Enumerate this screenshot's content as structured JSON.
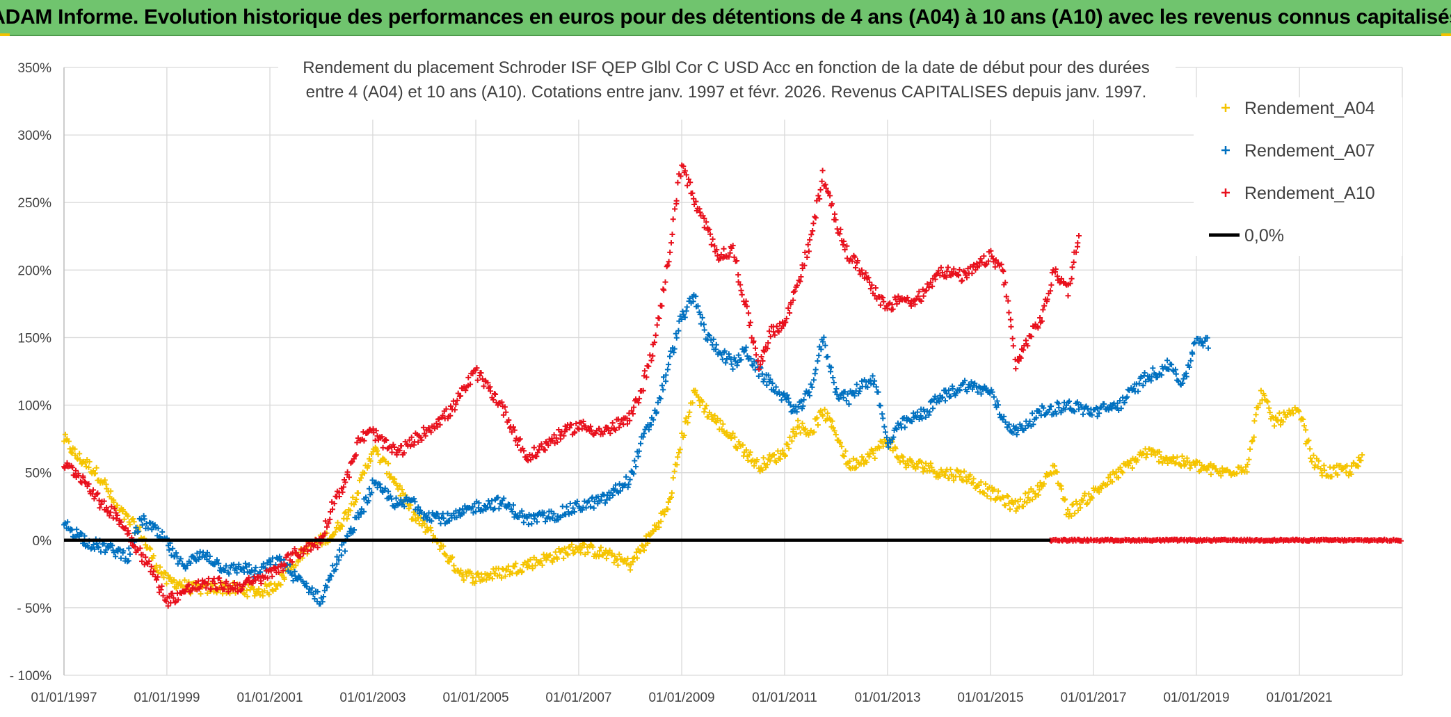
{
  "banner": {
    "title": "ADAM Informe. Evolution historique des performances en euros pour des détentions de 4 ans (A04) à 10 ans (A10) avec les revenus connus capitalisés"
  },
  "colors": {
    "banner_bg": "#70c46e",
    "A04": "#f5c400",
    "A07": "#0070c0",
    "A10": "#e8101c",
    "zero_line": "#000000",
    "grid": "#d9d9d9"
  },
  "chart_data": {
    "type": "scatter",
    "subtitle_lines": [
      "Rendement du placement Schroder ISF QEP Glbl Cor C USD Acc en fonction de la date de début pour des durées",
      "entre 4 (A04) et 10 ans (A10). Cotations entre janv. 1997 et févr. 2026. Revenus CAPITALISES depuis janv. 1997."
    ],
    "x_axis": {
      "range": [
        "1997-01-01",
        "2023-01-01"
      ],
      "tick_labels": [
        "01/01/1997",
        "01/01/1999",
        "01/01/2001",
        "01/01/2003",
        "01/01/2005",
        "01/01/2007",
        "01/01/2009",
        "01/01/2011",
        "01/01/2013",
        "01/01/2015",
        "01/01/2017",
        "01/01/2019",
        "01/01/2021"
      ]
    },
    "y_axis": {
      "range": [
        -100,
        350
      ],
      "unit": "%",
      "tick_labels": [
        "- 100%",
        "- 50%",
        "0%",
        "50%",
        "100%",
        "150%",
        "200%",
        "250%",
        "300%",
        "350%"
      ]
    },
    "grid": true,
    "legend_position": "top-right",
    "legend": [
      "Rendement_A04",
      "Rendement_A07",
      "Rendement_A10",
      "0,0%"
    ],
    "series": [
      {
        "name": "Rendement_A04",
        "color_key": "A04",
        "marker": "+",
        "points": [
          [
            "1997-01-01",
            75
          ],
          [
            "1997-04-01",
            62
          ],
          [
            "1997-07-01",
            55
          ],
          [
            "1997-10-01",
            45
          ],
          [
            "1998-01-01",
            25
          ],
          [
            "1998-04-01",
            15
          ],
          [
            "1998-07-01",
            5
          ],
          [
            "1998-10-01",
            -15
          ],
          [
            "1999-01-01",
            -30
          ],
          [
            "1999-04-01",
            -32
          ],
          [
            "1999-07-01",
            -36
          ],
          [
            "1999-10-01",
            -36
          ],
          [
            "2000-01-01",
            -35
          ],
          [
            "2000-04-01",
            -36
          ],
          [
            "2000-07-01",
            -37
          ],
          [
            "2000-10-01",
            -38
          ],
          [
            "2001-01-01",
            -36
          ],
          [
            "2001-04-01",
            -28
          ],
          [
            "2001-07-01",
            -15
          ],
          [
            "2001-10-01",
            -5
          ],
          [
            "2002-01-01",
            0
          ],
          [
            "2002-04-01",
            5
          ],
          [
            "2002-07-01",
            20
          ],
          [
            "2002-10-01",
            40
          ],
          [
            "2003-01-01",
            68
          ],
          [
            "2003-04-01",
            55
          ],
          [
            "2003-07-01",
            40
          ],
          [
            "2003-10-01",
            20
          ],
          [
            "2004-01-01",
            10
          ],
          [
            "2004-04-01",
            0
          ],
          [
            "2004-07-01",
            -15
          ],
          [
            "2004-10-01",
            -25
          ],
          [
            "2005-01-01",
            -28
          ],
          [
            "2005-07-01",
            -24
          ],
          [
            "2006-01-01",
            -18
          ],
          [
            "2006-07-01",
            -12
          ],
          [
            "2007-01-01",
            -5
          ],
          [
            "2007-07-01",
            -10
          ],
          [
            "2008-01-01",
            -18
          ],
          [
            "2008-04-01",
            -5
          ],
          [
            "2008-07-01",
            10
          ],
          [
            "2008-10-01",
            25
          ],
          [
            "2009-01-01",
            75
          ],
          [
            "2009-04-01",
            110
          ],
          [
            "2009-07-01",
            95
          ],
          [
            "2009-10-01",
            85
          ],
          [
            "2010-01-01",
            75
          ],
          [
            "2010-04-01",
            65
          ],
          [
            "2010-07-01",
            55
          ],
          [
            "2010-10-01",
            60
          ],
          [
            "2011-01-01",
            65
          ],
          [
            "2011-04-01",
            85
          ],
          [
            "2011-07-01",
            80
          ],
          [
            "2011-10-01",
            95
          ],
          [
            "2012-01-01",
            80
          ],
          [
            "2012-04-01",
            55
          ],
          [
            "2012-07-01",
            60
          ],
          [
            "2012-10-01",
            65
          ],
          [
            "2013-01-01",
            75
          ],
          [
            "2013-04-01",
            60
          ],
          [
            "2013-07-01",
            55
          ],
          [
            "2013-10-01",
            55
          ],
          [
            "2014-01-01",
            50
          ],
          [
            "2014-07-01",
            48
          ],
          [
            "2015-01-01",
            35
          ],
          [
            "2015-07-01",
            25
          ],
          [
            "2016-01-01",
            40
          ],
          [
            "2016-04-01",
            55
          ],
          [
            "2016-07-01",
            20
          ],
          [
            "2017-01-01",
            35
          ],
          [
            "2017-07-01",
            50
          ],
          [
            "2018-01-01",
            65
          ],
          [
            "2018-07-01",
            60
          ],
          [
            "2019-01-01",
            55
          ],
          [
            "2019-07-01",
            50
          ],
          [
            "2020-01-01",
            55
          ],
          [
            "2020-04-01",
            110
          ],
          [
            "2020-07-01",
            88
          ],
          [
            "2021-01-01",
            95
          ],
          [
            "2021-04-01",
            60
          ],
          [
            "2021-07-01",
            50
          ],
          [
            "2022-01-01",
            52
          ],
          [
            "2022-04-01",
            60
          ]
        ]
      },
      {
        "name": "Rendement_A07",
        "color_key": "A07",
        "marker": "+",
        "points": [
          [
            "1997-01-01",
            12
          ],
          [
            "1997-04-01",
            5
          ],
          [
            "1997-07-01",
            -2
          ],
          [
            "1997-10-01",
            -5
          ],
          [
            "1998-01-01",
            -8
          ],
          [
            "1998-04-01",
            -12
          ],
          [
            "1998-07-01",
            15
          ],
          [
            "1998-10-01",
            8
          ],
          [
            "1999-01-01",
            -2
          ],
          [
            "1999-04-01",
            -18
          ],
          [
            "1999-07-01",
            -15
          ],
          [
            "1999-10-01",
            -10
          ],
          [
            "2000-01-01",
            -18
          ],
          [
            "2000-04-01",
            -22
          ],
          [
            "2000-07-01",
            -20
          ],
          [
            "2000-10-01",
            -25
          ],
          [
            "2001-01-01",
            -18
          ],
          [
            "2001-04-01",
            -15
          ],
          [
            "2001-07-01",
            -28
          ],
          [
            "2001-10-01",
            -35
          ],
          [
            "2002-01-01",
            -45
          ],
          [
            "2002-04-01",
            -20
          ],
          [
            "2002-07-01",
            0
          ],
          [
            "2002-10-01",
            20
          ],
          [
            "2003-01-01",
            40
          ],
          [
            "2003-04-01",
            35
          ],
          [
            "2003-07-01",
            25
          ],
          [
            "2003-10-01",
            30
          ],
          [
            "2004-01-01",
            20
          ],
          [
            "2004-07-01",
            15
          ],
          [
            "2005-01-01",
            25
          ],
          [
            "2005-07-01",
            28
          ],
          [
            "2006-01-01",
            15
          ],
          [
            "2006-07-01",
            18
          ],
          [
            "2007-01-01",
            25
          ],
          [
            "2007-07-01",
            30
          ],
          [
            "2008-01-01",
            45
          ],
          [
            "2008-04-01",
            75
          ],
          [
            "2008-07-01",
            95
          ],
          [
            "2008-10-01",
            130
          ],
          [
            "2009-01-01",
            165
          ],
          [
            "2009-04-01",
            180
          ],
          [
            "2009-07-01",
            150
          ],
          [
            "2009-10-01",
            140
          ],
          [
            "2010-01-01",
            130
          ],
          [
            "2010-04-01",
            140
          ],
          [
            "2010-07-01",
            125
          ],
          [
            "2010-10-01",
            115
          ],
          [
            "2011-01-01",
            105
          ],
          [
            "2011-04-01",
            95
          ],
          [
            "2011-07-01",
            110
          ],
          [
            "2011-10-01",
            150
          ],
          [
            "2012-01-01",
            110
          ],
          [
            "2012-04-01",
            105
          ],
          [
            "2012-07-01",
            115
          ],
          [
            "2012-10-01",
            120
          ],
          [
            "2013-01-01",
            70
          ],
          [
            "2013-04-01",
            85
          ],
          [
            "2013-07-01",
            90
          ],
          [
            "2013-10-01",
            95
          ],
          [
            "2014-01-01",
            105
          ],
          [
            "2014-07-01",
            115
          ],
          [
            "2015-01-01",
            110
          ],
          [
            "2015-04-01",
            90
          ],
          [
            "2015-07-01",
            80
          ],
          [
            "2016-01-01",
            95
          ],
          [
            "2016-07-01",
            100
          ],
          [
            "2017-01-01",
            95
          ],
          [
            "2017-07-01",
            100
          ],
          [
            "2018-01-01",
            120
          ],
          [
            "2018-07-01",
            130
          ],
          [
            "2018-10-01",
            115
          ],
          [
            "2019-01-01",
            150
          ],
          [
            "2019-04-01",
            145
          ]
        ]
      },
      {
        "name": "Rendement_A10",
        "color_key": "A10",
        "marker": "+",
        "points": [
          [
            "1997-01-01",
            55
          ],
          [
            "1997-04-01",
            50
          ],
          [
            "1997-07-01",
            40
          ],
          [
            "1997-10-01",
            25
          ],
          [
            "1998-01-01",
            20
          ],
          [
            "1998-04-01",
            5
          ],
          [
            "1998-07-01",
            -10
          ],
          [
            "1998-10-01",
            -25
          ],
          [
            "1999-01-01",
            -45
          ],
          [
            "1999-04-01",
            -40
          ],
          [
            "1999-07-01",
            -35
          ],
          [
            "1999-10-01",
            -33
          ],
          [
            "2000-01-01",
            -32
          ],
          [
            "2000-04-01",
            -35
          ],
          [
            "2000-07-01",
            -33
          ],
          [
            "2000-10-01",
            -30
          ],
          [
            "2001-01-01",
            -25
          ],
          [
            "2001-04-01",
            -18
          ],
          [
            "2001-07-01",
            -10
          ],
          [
            "2001-10-01",
            -5
          ],
          [
            "2002-01-01",
            0
          ],
          [
            "2002-04-01",
            30
          ],
          [
            "2002-07-01",
            45
          ],
          [
            "2002-10-01",
            75
          ],
          [
            "2003-01-01",
            80
          ],
          [
            "2003-04-01",
            70
          ],
          [
            "2003-07-01",
            65
          ],
          [
            "2003-10-01",
            72
          ],
          [
            "2004-01-01",
            80
          ],
          [
            "2004-07-01",
            95
          ],
          [
            "2005-01-01",
            125
          ],
          [
            "2005-07-01",
            100
          ],
          [
            "2006-01-01",
            60
          ],
          [
            "2006-07-01",
            75
          ],
          [
            "2007-01-01",
            85
          ],
          [
            "2007-07-01",
            80
          ],
          [
            "2008-01-01",
            90
          ],
          [
            "2008-04-01",
            115
          ],
          [
            "2008-07-01",
            150
          ],
          [
            "2008-10-01",
            210
          ],
          [
            "2009-01-01",
            280
          ],
          [
            "2009-04-01",
            250
          ],
          [
            "2009-07-01",
            230
          ],
          [
            "2009-10-01",
            210
          ],
          [
            "2010-01-01",
            215
          ],
          [
            "2010-07-01",
            130
          ],
          [
            "2010-10-01",
            155
          ],
          [
            "2011-01-01",
            160
          ],
          [
            "2011-04-01",
            190
          ],
          [
            "2011-07-01",
            220
          ],
          [
            "2011-10-01",
            270
          ],
          [
            "2012-01-01",
            235
          ],
          [
            "2012-04-01",
            210
          ],
          [
            "2012-07-01",
            200
          ],
          [
            "2012-10-01",
            185
          ],
          [
            "2013-01-01",
            170
          ],
          [
            "2013-04-01",
            180
          ],
          [
            "2013-07-01",
            175
          ],
          [
            "2013-10-01",
            185
          ],
          [
            "2014-01-01",
            200
          ],
          [
            "2014-07-01",
            195
          ],
          [
            "2015-01-01",
            210
          ],
          [
            "2015-04-01",
            200
          ],
          [
            "2015-07-01",
            130
          ],
          [
            "2015-10-01",
            150
          ],
          [
            "2016-01-01",
            165
          ],
          [
            "2016-04-01",
            200
          ],
          [
            "2016-07-01",
            185
          ],
          [
            "2016-10-01",
            230
          ]
        ]
      },
      {
        "name": "Rendement_A10_zero_tail",
        "color_key": "A10",
        "marker": "+",
        "points": [
          [
            "2016-03-01",
            0
          ],
          [
            "2023-01-01",
            0
          ]
        ]
      }
    ],
    "reference_line": {
      "name": "0,0%",
      "value": 0
    }
  }
}
